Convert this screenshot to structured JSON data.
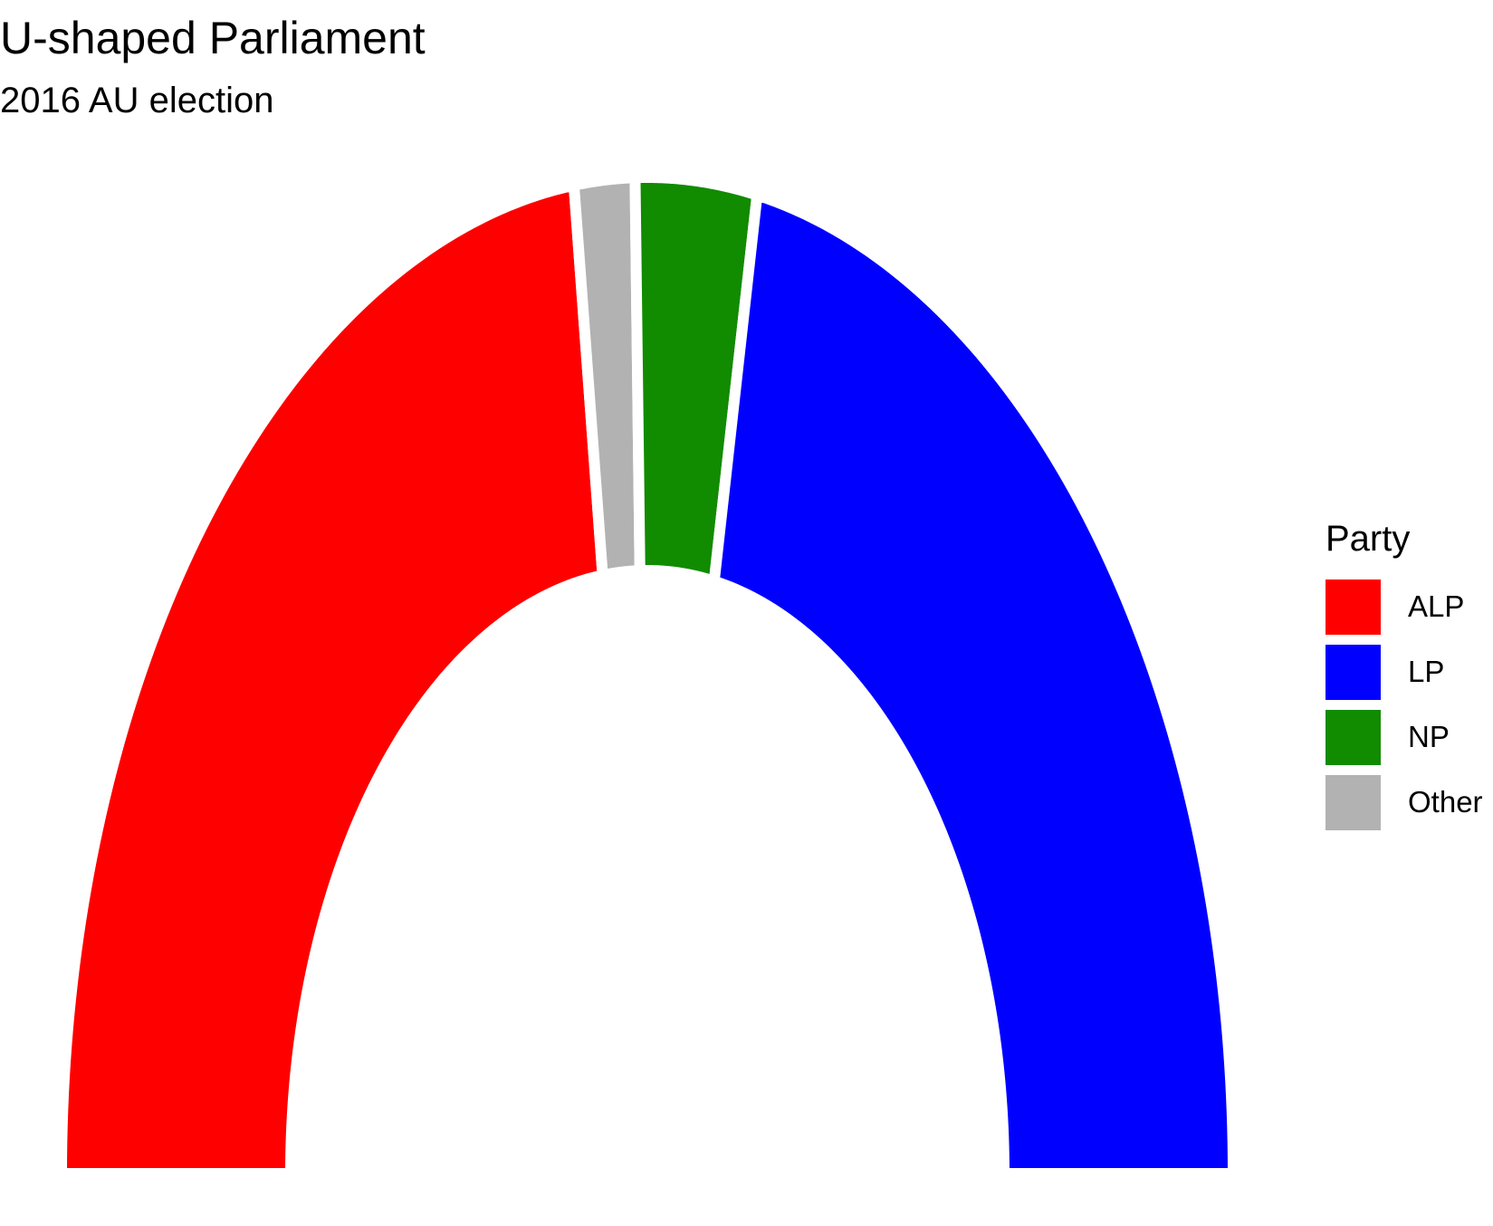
{
  "chart_data": {
    "type": "parliament",
    "layout": "horseshoe",
    "title": "U-shaped Parliament",
    "subtitle": "2016 AU election",
    "legend": {
      "title": "Party",
      "position": "right"
    },
    "series": [
      {
        "name": "ALP",
        "seats": 69,
        "color": "#FF0000"
      },
      {
        "name": "Other",
        "seats": 5,
        "color": "#B2B2B2"
      },
      {
        "name": "NP",
        "seats": 10,
        "color": "#118B00"
      },
      {
        "name": "LP",
        "seats": 66,
        "color": "#0000FF"
      }
    ],
    "legend_order": [
      "ALP",
      "LP",
      "NP",
      "Other"
    ]
  }
}
